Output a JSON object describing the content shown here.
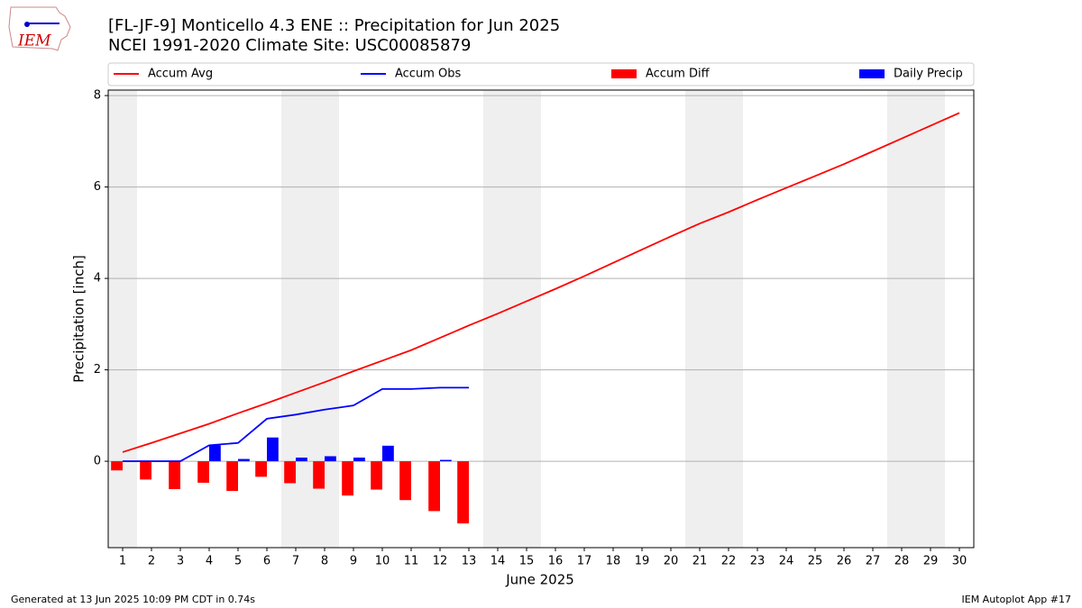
{
  "logo_text": "IEM",
  "chart_data": {
    "type": "bar_line",
    "title": "[FL-JF-9] Monticello 4.3 ENE :: Precipitation for Jun 2025",
    "subtitle": "NCEI 1991-2020 Climate Site: USC00085879",
    "y_label": "Precipitation [inch]",
    "x_label": "June 2025",
    "x": [
      1,
      2,
      3,
      4,
      5,
      6,
      7,
      8,
      9,
      10,
      11,
      12,
      13,
      14,
      15,
      16,
      17,
      18,
      19,
      20,
      21,
      22,
      23,
      24,
      25,
      26,
      27,
      28,
      29,
      30
    ],
    "xlim": [
      0.5,
      30.5
    ],
    "xticks": [
      1,
      2,
      3,
      4,
      5,
      6,
      7,
      8,
      9,
      10,
      11,
      12,
      13,
      14,
      15,
      16,
      17,
      18,
      19,
      20,
      21,
      22,
      23,
      24,
      25,
      26,
      27,
      28,
      29,
      30
    ],
    "ylim": [
      -1.89,
      8.12
    ],
    "yticks": [
      0,
      2,
      4,
      6,
      8
    ],
    "grid": true,
    "shaded_days": [
      1,
      7,
      8,
      14,
      15,
      21,
      22,
      28,
      29
    ],
    "series": [
      {
        "name": "Accum Avg",
        "kind": "line",
        "color": "#ff0000",
        "values": [
          0.2,
          0.4,
          0.61,
          0.82,
          1.05,
          1.27,
          1.5,
          1.73,
          1.97,
          2.2,
          2.43,
          2.7,
          2.97,
          3.23,
          3.5,
          3.77,
          4.05,
          4.34,
          4.63,
          4.92,
          5.2,
          5.45,
          5.72,
          5.98,
          6.24,
          6.5,
          6.78,
          7.06,
          7.34,
          7.62
        ]
      },
      {
        "name": "Accum Obs",
        "kind": "line",
        "color": "#0000ff",
        "values": [
          0,
          0,
          0,
          0.35,
          0.4,
          0.93,
          1.02,
          1.13,
          1.22,
          1.58,
          1.58,
          1.61,
          1.61,
          null,
          null,
          null,
          null,
          null,
          null,
          null,
          null,
          null,
          null,
          null,
          null,
          null,
          null,
          null,
          null,
          null
        ]
      },
      {
        "name": "Accum Diff",
        "kind": "bar",
        "offset": -0.2,
        "color": "#ff0000",
        "values": [
          -0.2,
          -0.4,
          -0.61,
          -0.47,
          -0.65,
          -0.34,
          -0.48,
          -0.6,
          -0.75,
          -0.62,
          -0.85,
          -1.09,
          -1.36,
          null,
          null,
          null,
          null,
          null,
          null,
          null,
          null,
          null,
          null,
          null,
          null,
          null,
          null,
          null,
          null,
          null
        ]
      },
      {
        "name": "Daily Precip",
        "kind": "bar",
        "offset": 0.2,
        "color": "#0000ff",
        "values": [
          0,
          0,
          0,
          0.35,
          0.05,
          0.52,
          0.08,
          0.11,
          0.08,
          0.34,
          0,
          0.03,
          0,
          null,
          null,
          null,
          null,
          null,
          null,
          null,
          null,
          null,
          null,
          null,
          null,
          null,
          null,
          null,
          null,
          null
        ]
      }
    ],
    "footer_left": "Generated at 13 Jun 2025 10:09 PM CDT in 0.74s",
    "footer_right": "IEM Autoplot App #17"
  }
}
